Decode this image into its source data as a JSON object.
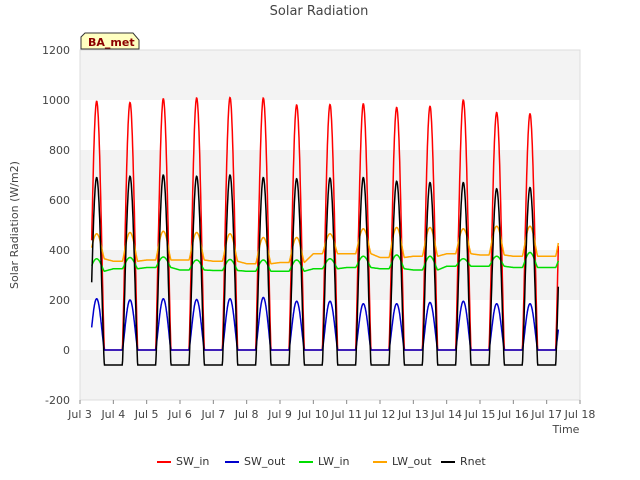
{
  "chart_data": {
    "type": "line",
    "title": "Solar Radiation",
    "xlabel": "Time",
    "ylabel": "Solar Radiation (W/m2)",
    "ylim": [
      -200,
      1200
    ],
    "y_ticks": [
      -200,
      0,
      200,
      400,
      600,
      800,
      1000,
      1200
    ],
    "x_ticks": [
      "Jul 3",
      "Jul 4",
      "Jul 5",
      "Jul 6",
      "Jul 7",
      "Jul 8",
      "Jul 9",
      "Jul 10",
      "Jul 11",
      "Jul 12",
      "Jul 13",
      "Jul 14",
      "Jul 15",
      "Jul 16",
      "Jul 17",
      "Jul 18"
    ],
    "x_range_days": [
      3,
      18
    ],
    "grid": "horizontal bands",
    "legend_position": "bottom",
    "badge": "BA_met",
    "day_centers": [
      "Jul 3 (midday)",
      "Jul 4",
      "Jul 5",
      "Jul 6",
      "Jul 7",
      "Jul 8",
      "Jul 9",
      "Jul 10",
      "Jul 11",
      "Jul 12",
      "Jul 13",
      "Jul 14",
      "Jul 15",
      "Jul 16"
    ],
    "series": [
      {
        "name": "SW_in",
        "color": "#ff0000",
        "daily_peak": [
          995,
          990,
          1005,
          1008,
          1010,
          1008,
          980,
          982,
          985,
          970,
          975,
          1000,
          950,
          945
        ],
        "night_value": 0
      },
      {
        "name": "SW_out",
        "color": "#0000cc",
        "daily_peak": [
          205,
          200,
          205,
          202,
          205,
          210,
          195,
          195,
          185,
          185,
          190,
          195,
          185,
          185
        ],
        "night_value": 0
      },
      {
        "name": "LW_in",
        "color": "#00dd00",
        "daily_peak": [
          365,
          370,
          372,
          360,
          362,
          360,
          360,
          365,
          375,
          380,
          375,
          365,
          375,
          390
        ],
        "night_value": [
          315,
          325,
          330,
          320,
          318,
          315,
          315,
          325,
          330,
          325,
          320,
          335,
          335,
          330
        ]
      },
      {
        "name": "LW_out",
        "color": "#ffa500",
        "daily_peak": [
          465,
          470,
          475,
          470,
          465,
          450,
          450,
          465,
          485,
          490,
          490,
          485,
          495,
          495
        ],
        "night_value": [
          365,
          355,
          360,
          360,
          355,
          345,
          350,
          385,
          385,
          370,
          375,
          385,
          380,
          375
        ]
      },
      {
        "name": "Rnet",
        "color": "#000000",
        "daily_peak": [
          690,
          695,
          700,
          695,
          700,
          690,
          685,
          688,
          690,
          675,
          670,
          670,
          645,
          650
        ],
        "night_value": -60
      }
    ]
  }
}
